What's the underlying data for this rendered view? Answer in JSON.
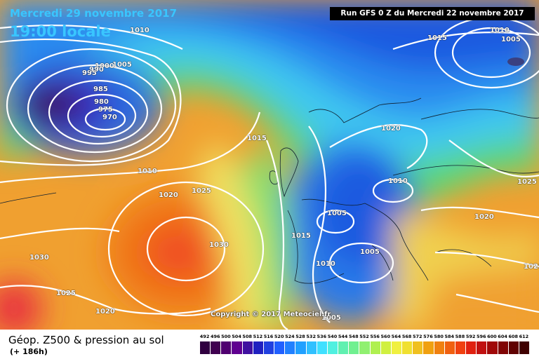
{
  "header": {
    "date": "Mercredi 29 novembre 2017",
    "time": "19:00 locale",
    "run": "Run GFS 0 Z du Mercredi 22 novembre 2017"
  },
  "footer": {
    "product": "Géop. Z500 & pression au sol",
    "lead": "(+ 186h)",
    "copyright": "Copyright © 2017 Meteociel.fr"
  },
  "colors": {
    "ocean_blue": "#1e6ae8",
    "deep_low": "#3a1a5c",
    "green": "#58d878",
    "yellow": "#f0e060",
    "orange": "#f0a020",
    "red": "#e84020",
    "isobar": "#ffffff"
  },
  "isobar_labels": [
    {
      "text": "1010"
    },
    {
      "text": "1005"
    },
    {
      "text": "1000"
    },
    {
      "text": "995"
    },
    {
      "text": "990"
    },
    {
      "text": "985"
    },
    {
      "text": "980"
    },
    {
      "text": "975"
    },
    {
      "text": "970"
    },
    {
      "text": "1015"
    },
    {
      "text": "1010"
    },
    {
      "text": "1020"
    },
    {
      "text": "1025"
    },
    {
      "text": "1030"
    },
    {
      "text": "1030"
    },
    {
      "text": "1025"
    },
    {
      "text": "1020"
    },
    {
      "text": "1015"
    },
    {
      "text": "1010"
    },
    {
      "text": "1005"
    },
    {
      "text": "1005"
    },
    {
      "text": "1010"
    },
    {
      "text": "1020"
    },
    {
      "text": "1015"
    },
    {
      "text": "1010"
    },
    {
      "text": "1005"
    },
    {
      "text": "1025"
    },
    {
      "text": "1020"
    },
    {
      "text": "1025"
    },
    {
      "text": "1005"
    }
  ],
  "scale": {
    "ticks": [
      "492",
      "496",
      "500",
      "504",
      "508",
      "512",
      "516",
      "520",
      "524",
      "528",
      "532",
      "536",
      "540",
      "544",
      "548",
      "552",
      "556",
      "560",
      "564",
      "568",
      "572",
      "576",
      "580",
      "584",
      "588",
      "592",
      "596",
      "600",
      "604",
      "608",
      "612"
    ],
    "colors": [
      "#300040",
      "#400050",
      "#500070",
      "#600090",
      "#4010a0",
      "#2020c0",
      "#2040e0",
      "#2060ff",
      "#2080ff",
      "#20a0ff",
      "#30c0ff",
      "#40e0ff",
      "#50f0e0",
      "#60f0b0",
      "#70f090",
      "#90f070",
      "#b0f050",
      "#d0f040",
      "#f0f040",
      "#f0e030",
      "#f0c020",
      "#f0a010",
      "#f08010",
      "#f06010",
      "#f04010",
      "#e02010",
      "#c01010",
      "#a00808",
      "#800404",
      "#600202",
      "#400000"
    ]
  }
}
